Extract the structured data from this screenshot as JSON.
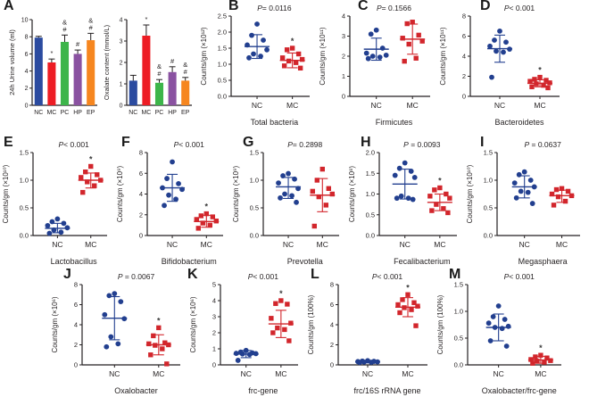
{
  "colors": {
    "axis": "#231f20",
    "nc_bar": "#2b4ba0",
    "mc_bar": "#ed1c24",
    "pc_bar": "#3db54a",
    "hp_bar": "#8a52a1",
    "ep_bar": "#f6861f",
    "nc_dot": "#223f8f",
    "mc_dot": "#d2262c",
    "star": "#3a3a3a"
  },
  "chart_data": [
    {
      "panel": "A",
      "type": "bar",
      "ylabel": "24h Urine volume (ml)",
      "ylim": [
        0,
        10
      ],
      "yticks": [
        "0",
        "2",
        "4",
        "6",
        "8",
        "10"
      ],
      "categories": [
        "NC",
        "MC",
        "PC",
        "HP",
        "EP"
      ],
      "values": [
        7.9,
        5.0,
        7.4,
        6.0,
        7.6
      ],
      "errors": [
        0.15,
        0.4,
        0.8,
        0.45,
        0.8
      ],
      "bar_colors": [
        "#2b4ba0",
        "#ed1c24",
        "#3db54a",
        "#8a52a1",
        "#f6861f"
      ],
      "annotations": [
        [],
        [
          "*"
        ],
        [
          "&",
          "#"
        ],
        [
          "#"
        ],
        [
          "&",
          "#"
        ]
      ]
    },
    {
      "panel": "A",
      "type": "bar",
      "ylabel": "Oxalate content (mmol/L)",
      "ylim": [
        0,
        4
      ],
      "yticks": [
        "0",
        "1",
        "2",
        "3",
        "4"
      ],
      "categories": [
        "NC",
        "MC",
        "PC",
        "HP",
        "EP"
      ],
      "values": [
        1.15,
        3.25,
        1.05,
        1.55,
        1.15
      ],
      "errors": [
        0.25,
        0.5,
        0.15,
        0.25,
        0.15
      ],
      "bar_colors": [
        "#2b4ba0",
        "#ed1c24",
        "#3db54a",
        "#8a52a1",
        "#f6861f"
      ],
      "annotations": [
        [],
        [
          "*"
        ],
        [
          "&",
          "#"
        ],
        [
          "#"
        ],
        [
          "&",
          "#"
        ]
      ]
    },
    {
      "panel": "B",
      "type": "scatter",
      "p_label": "P= 0.0116",
      "ylabel": "Counts/gm (×10¹²)",
      "xlabel": "Total bacteria",
      "ylim": [
        0,
        2.5
      ],
      "yticks": [
        "0.0",
        "0.5",
        "1.0",
        "1.5",
        "2.0",
        "2.5"
      ],
      "groups": [
        {
          "name": "NC",
          "color": "#223f8f",
          "marker": "circle",
          "star": false,
          "values": [
            2.25,
            1.9,
            1.75,
            1.6,
            1.45,
            1.32,
            1.25,
            1.2
          ],
          "mean": 1.55,
          "upper": 1.92,
          "lower": 1.18
        },
        {
          "name": "MC",
          "color": "#d2262c",
          "marker": "square",
          "star": true,
          "values": [
            1.5,
            1.45,
            1.32,
            1.2,
            1.15,
            1.1,
            1.05,
            0.95,
            0.88
          ],
          "mean": 1.12,
          "upper": 1.35,
          "lower": 0.89
        }
      ]
    },
    {
      "panel": "C",
      "type": "scatter",
      "p_label": "P= 0.1566",
      "ylabel": "Counts/gm (×10¹¹)",
      "xlabel": "Firmicutes",
      "ylim": [
        0,
        4
      ],
      "yticks": [
        "0",
        "1",
        "2",
        "3",
        "4"
      ],
      "groups": [
        {
          "name": "NC",
          "color": "#223f8f",
          "marker": "circle",
          "star": false,
          "values": [
            3.3,
            3.1,
            2.4,
            2.15,
            2.05,
            2.0,
            1.95,
            1.88
          ],
          "mean": 2.35,
          "upper": 2.9,
          "lower": 1.8
        },
        {
          "name": "MC",
          "color": "#d2262c",
          "marker": "square",
          "star": false,
          "values": [
            3.7,
            3.62,
            3.05,
            2.9,
            2.75,
            2.6,
            1.9,
            1.75
          ],
          "mean": 2.85,
          "upper": 3.6,
          "lower": 2.1
        }
      ]
    },
    {
      "panel": "D",
      "type": "scatter",
      "p_label": "P< 0.001",
      "ylabel": "Counts/gm (×10¹¹)",
      "xlabel": "Bacteroidetes",
      "ylim": [
        0,
        8
      ],
      "yticks": [
        "0",
        "2",
        "4",
        "6",
        "8"
      ],
      "groups": [
        {
          "name": "NC",
          "color": "#223f8f",
          "marker": "circle",
          "star": false,
          "values": [
            6.5,
            5.6,
            5.4,
            5.0,
            4.7,
            4.5,
            4.4,
            1.9
          ],
          "mean": 4.75,
          "upper": 6.1,
          "lower": 3.4
        },
        {
          "name": "MC",
          "color": "#d2262c",
          "marker": "square",
          "star": true,
          "values": [
            1.9,
            1.7,
            1.6,
            1.5,
            1.35,
            1.25,
            1.1,
            0.95,
            0.85
          ],
          "mean": 1.3,
          "upper": 1.65,
          "lower": 0.95
        }
      ]
    },
    {
      "panel": "E",
      "type": "scatter",
      "p_label": "P< 0.001",
      "ylabel": "Counts/gm (×10¹⁰)",
      "xlabel": "Lactobacillus",
      "ylim": [
        0,
        1.5
      ],
      "yticks": [
        "0.0",
        "0.5",
        "1.0",
        "1.5"
      ],
      "groups": [
        {
          "name": "NC",
          "color": "#223f8f",
          "marker": "circle",
          "star": false,
          "values": [
            0.3,
            0.25,
            0.22,
            0.18,
            0.14,
            0.1,
            0.06,
            0.04
          ],
          "mean": 0.13,
          "upper": 0.22,
          "lower": 0.05
        },
        {
          "name": "MC",
          "color": "#d2262c",
          "marker": "square",
          "star": true,
          "values": [
            1.25,
            1.15,
            1.1,
            1.05,
            1.0,
            0.97,
            0.9,
            0.78
          ],
          "mean": 1.0,
          "upper": 1.13,
          "lower": 0.86
        }
      ]
    },
    {
      "panel": "F",
      "type": "scatter",
      "p_label": "P< 0.001",
      "ylabel": "Counts/gm (×10⁹)",
      "xlabel": "Bifidobacterium",
      "ylim": [
        0,
        8
      ],
      "yticks": [
        "0",
        "2",
        "4",
        "6",
        "8"
      ],
      "groups": [
        {
          "name": "NC",
          "color": "#223f8f",
          "marker": "circle",
          "star": false,
          "values": [
            7.1,
            5.5,
            5.0,
            4.6,
            4.45,
            3.9,
            3.5,
            2.9
          ],
          "mean": 4.6,
          "upper": 5.9,
          "lower": 3.3
        },
        {
          "name": "MC",
          "color": "#d2262c",
          "marker": "square",
          "star": true,
          "values": [
            2.1,
            1.9,
            1.8,
            1.55,
            1.4,
            1.2,
            1.0,
            0.7
          ],
          "mean": 1.35,
          "upper": 1.95,
          "lower": 0.8
        }
      ]
    },
    {
      "panel": "G",
      "type": "scatter",
      "p_label": "P= 0.2898",
      "ylabel": "Counts/gm (×10⁹)",
      "xlabel": "Prevotella",
      "ylim": [
        0,
        1.5
      ],
      "yticks": [
        "0.0",
        "0.5",
        "1.0",
        "1.5"
      ],
      "groups": [
        {
          "name": "NC",
          "color": "#223f8f",
          "marker": "circle",
          "star": false,
          "values": [
            1.12,
            1.08,
            1.02,
            0.95,
            0.85,
            0.75,
            0.72,
            0.68,
            0.6
          ],
          "mean": 0.88,
          "upper": 1.05,
          "lower": 0.67
        },
        {
          "name": "MC",
          "color": "#d2262c",
          "marker": "square",
          "star": false,
          "values": [
            1.2,
            1.0,
            0.85,
            0.8,
            0.75,
            0.7,
            0.55,
            0.17
          ],
          "mean": 0.73,
          "upper": 1.03,
          "lower": 0.43
        }
      ]
    },
    {
      "panel": "H",
      "type": "scatter",
      "p_label": "P = 0.0093",
      "ylabel": "Counts/gm (×10⁸)",
      "xlabel": "Fecalibacterium",
      "ylim": [
        0,
        2.0
      ],
      "yticks": [
        "0.0",
        "0.5",
        "1.0",
        "1.5",
        "2.0"
      ],
      "groups": [
        {
          "name": "NC",
          "color": "#223f8f",
          "marker": "circle",
          "star": false,
          "values": [
            1.75,
            1.62,
            1.55,
            1.45,
            1.4,
            0.95,
            0.9,
            0.9,
            0.87
          ],
          "mean": 1.24,
          "upper": 1.6,
          "lower": 0.88
        },
        {
          "name": "MC",
          "color": "#d2262c",
          "marker": "square",
          "star": true,
          "values": [
            1.15,
            1.1,
            1.0,
            0.95,
            0.9,
            0.75,
            0.65,
            0.6,
            0.55
          ],
          "mean": 0.8,
          "upper": 1.0,
          "lower": 0.6
        }
      ]
    },
    {
      "panel": "I",
      "type": "scatter",
      "p_label": "P = 0.0637",
      "ylabel": "Counts/gm (×10¹⁰)",
      "xlabel": "Megasphaera",
      "ylim": [
        0,
        1.5
      ],
      "yticks": [
        "0.0",
        "0.5",
        "1.0",
        "1.5"
      ],
      "groups": [
        {
          "name": "NC",
          "color": "#223f8f",
          "marker": "circle",
          "star": false,
          "values": [
            1.15,
            1.1,
            1.0,
            0.95,
            0.88,
            0.8,
            0.78,
            0.68,
            0.58
          ],
          "mean": 0.88,
          "upper": 1.08,
          "lower": 0.68
        },
        {
          "name": "MC",
          "color": "#d2262c",
          "marker": "square",
          "star": false,
          "values": [
            0.85,
            0.83,
            0.8,
            0.75,
            0.72,
            0.7,
            0.62,
            0.55
          ],
          "mean": 0.72,
          "upper": 0.82,
          "lower": 0.6
        }
      ]
    },
    {
      "panel": "J",
      "type": "scatter",
      "p_label": "P = 0.0067",
      "ylabel": "Counts/gm (×10⁶)",
      "xlabel": "Oxalobacter",
      "ylim": [
        0,
        8
      ],
      "yticks": [
        "0",
        "2",
        "4",
        "6",
        "8"
      ],
      "groups": [
        {
          "name": "NC",
          "color": "#223f8f",
          "marker": "circle",
          "star": false,
          "values": [
            7.1,
            6.9,
            6.3,
            5.0,
            4.6,
            2.8,
            2.1,
            1.8
          ],
          "mean": 4.65,
          "upper": 6.8,
          "lower": 2.5
        },
        {
          "name": "MC",
          "color": "#d2262c",
          "marker": "square",
          "star": true,
          "values": [
            3.7,
            2.9,
            2.2,
            2.1,
            2.0,
            1.95,
            1.6,
            1.0,
            0.1
          ],
          "mean": 2.0,
          "upper": 3.0,
          "lower": 1.0
        }
      ]
    },
    {
      "panel": "K",
      "type": "scatter",
      "p_label": "P< 0.001",
      "ylabel": "Counts/gm (×10⁶)",
      "xlabel": "frc-gene",
      "ylim": [
        0,
        5
      ],
      "yticks": [
        "0",
        "1",
        "2",
        "3",
        "4",
        "5"
      ],
      "groups": [
        {
          "name": "NC",
          "color": "#223f8f",
          "marker": "circle",
          "star": false,
          "values": [
            0.9,
            0.8,
            0.75,
            0.72,
            0.7,
            0.68,
            0.65,
            0.28
          ],
          "mean": 0.67,
          "upper": 0.9,
          "lower": 0.45
        },
        {
          "name": "MC",
          "color": "#d2262c",
          "marker": "square",
          "star": true,
          "values": [
            4.0,
            3.82,
            3.78,
            2.9,
            2.6,
            2.3,
            2.2,
            2.0,
            1.5
          ],
          "mean": 2.55,
          "upper": 3.4,
          "lower": 1.7
        }
      ]
    },
    {
      "panel": "L",
      "type": "scatter",
      "p_label": "P< 0.001",
      "ylabel": "Counts/gm (100%)",
      "xlabel": "frc/16S rRNA gene",
      "ylim": [
        0,
        8
      ],
      "yticks": [
        "0",
        "2",
        "4",
        "6",
        "8"
      ],
      "groups": [
        {
          "name": "NC",
          "color": "#223f8f",
          "marker": "circle",
          "star": false,
          "values": [
            0.42,
            0.38,
            0.35,
            0.33,
            0.3,
            0.28,
            0.26,
            0.24
          ],
          "mean": 0.32,
          "upper": 0.44,
          "lower": 0.2
        },
        {
          "name": "MC",
          "color": "#d2262c",
          "marker": "square",
          "star": true,
          "values": [
            7.0,
            6.5,
            6.2,
            6.0,
            5.85,
            5.7,
            5.5,
            5.2,
            3.9
          ],
          "mean": 5.75,
          "upper": 6.7,
          "lower": 4.8
        }
      ]
    },
    {
      "panel": "M",
      "type": "scatter",
      "p_label": "P< 0.001",
      "ylabel": "Counts/gm (100%)",
      "xlabel": "Oxalobacter/frc-gene",
      "ylim": [
        0,
        1.5
      ],
      "yticks": [
        "0.0",
        "0.5",
        "1.0",
        "1.5"
      ],
      "groups": [
        {
          "name": "NC",
          "color": "#223f8f",
          "marker": "circle",
          "star": false,
          "values": [
            1.1,
            0.9,
            0.85,
            0.78,
            0.72,
            0.7,
            0.68,
            0.45,
            0.35
          ],
          "mean": 0.7,
          "upper": 0.95,
          "lower": 0.45
        },
        {
          "name": "MC",
          "color": "#d2262c",
          "marker": "square",
          "star": true,
          "values": [
            0.18,
            0.15,
            0.13,
            0.1,
            0.08,
            0.07,
            0.05,
            0.03
          ],
          "mean": 0.09,
          "upper": 0.16,
          "lower": 0.03
        }
      ]
    }
  ]
}
